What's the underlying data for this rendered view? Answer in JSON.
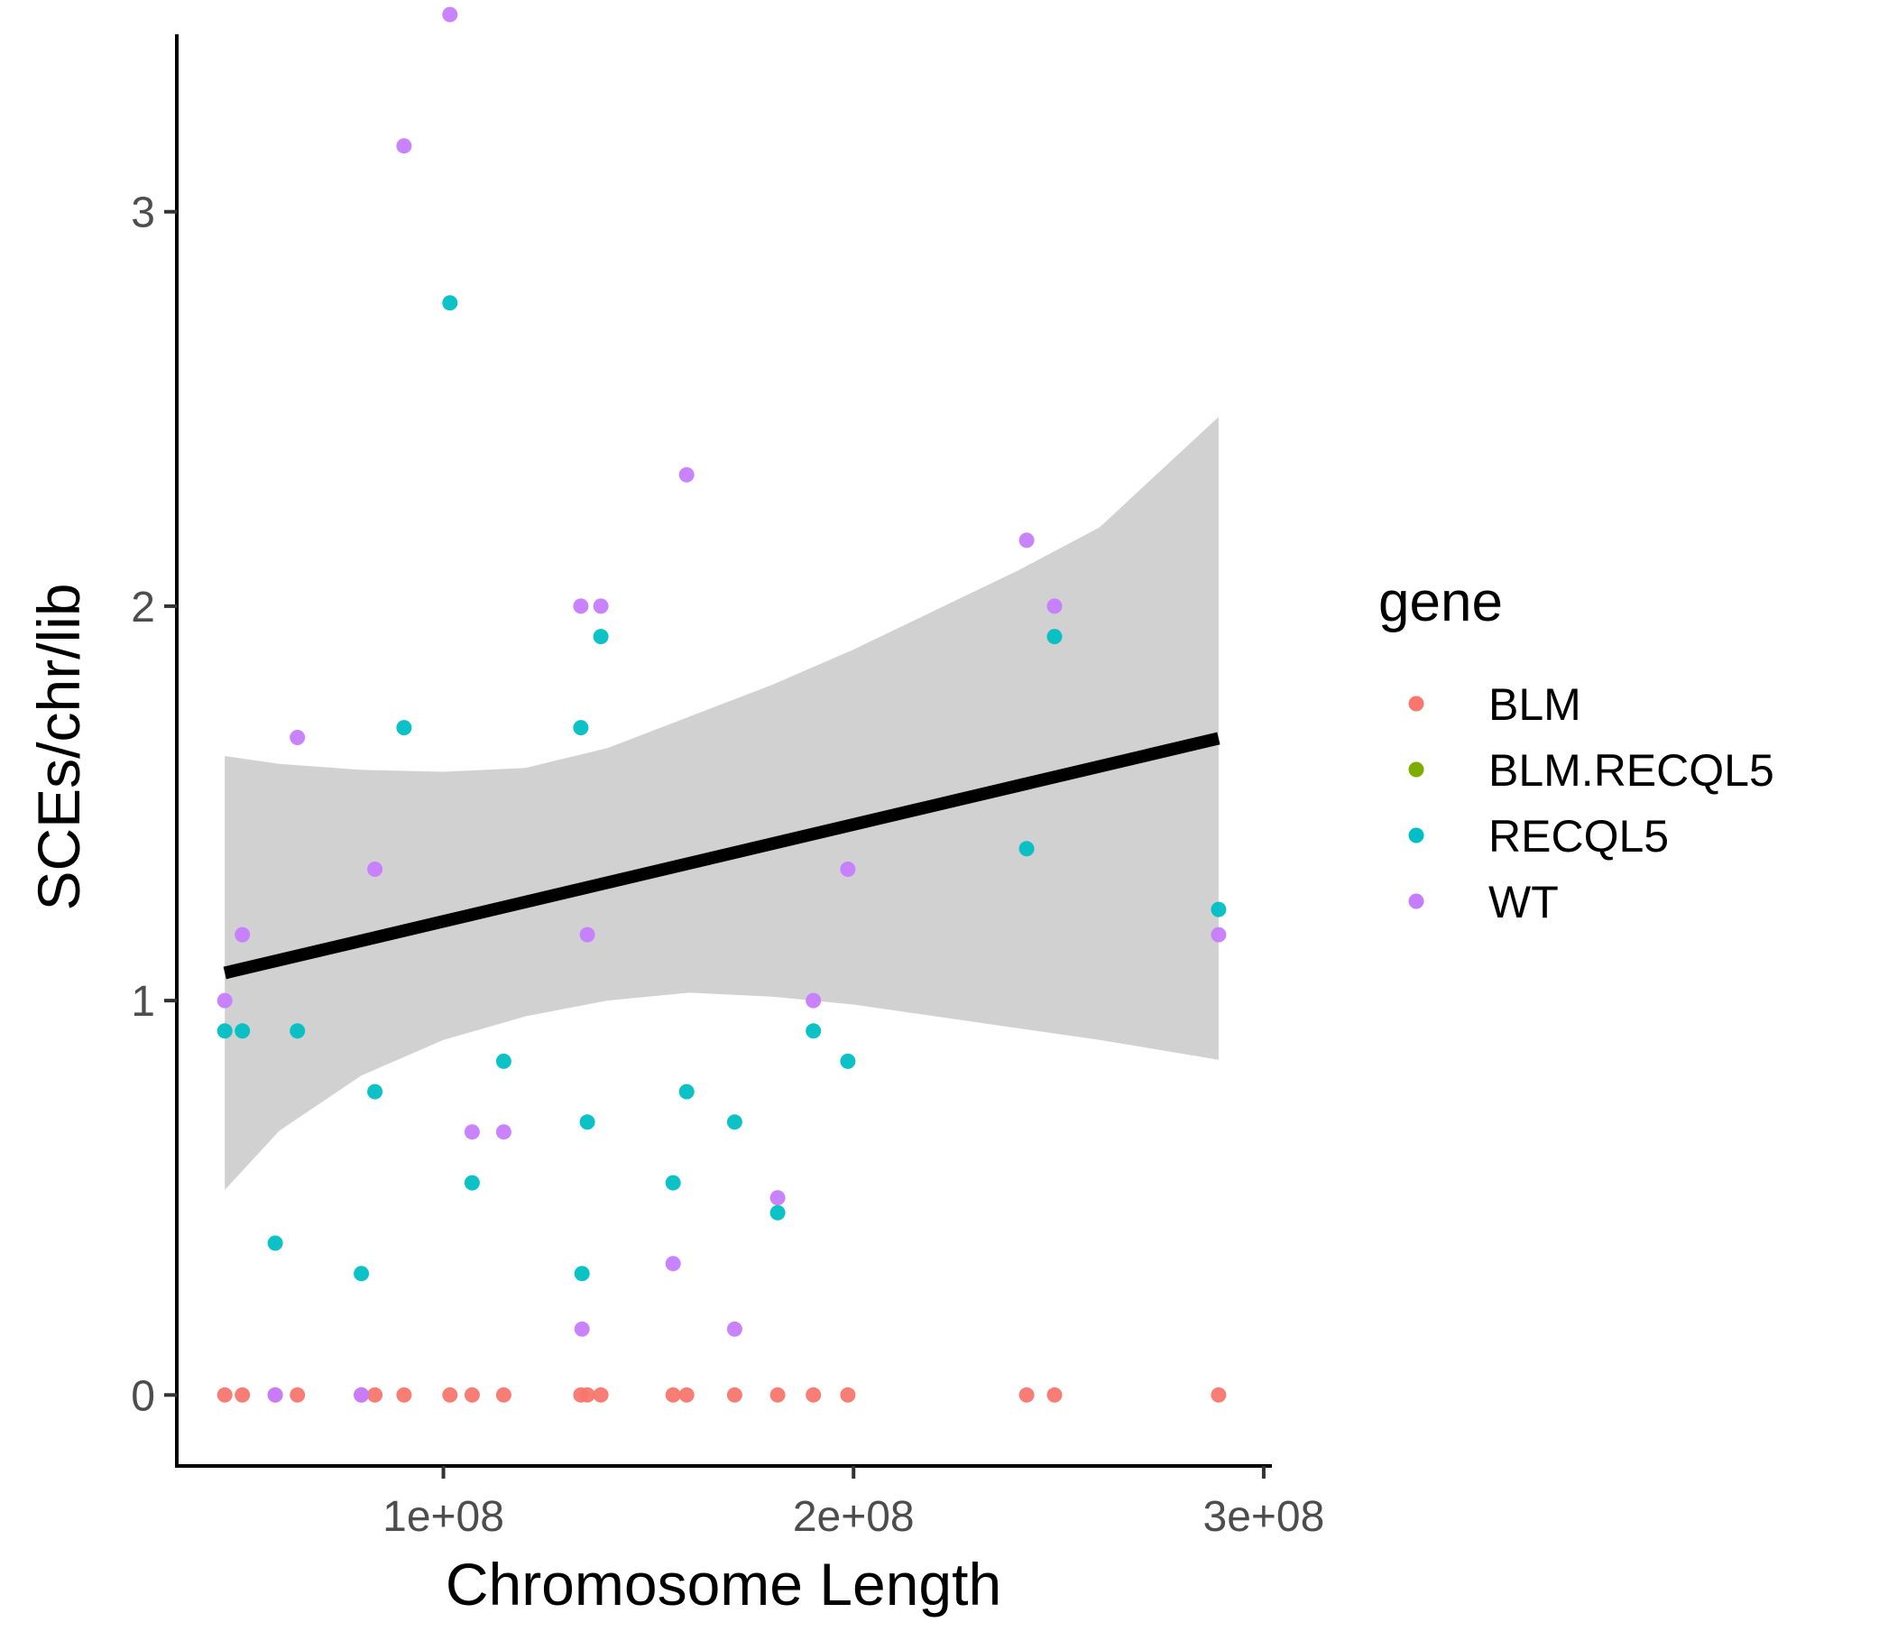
{
  "chart_data": {
    "type": "scatter",
    "xlabel": "Chromosome Length",
    "ylabel": "SCEs/chr/lib",
    "xlim": [
      35000000,
      302000000
    ],
    "ylim": [
      -0.18,
      3.45
    ],
    "xticks": [
      100000000,
      200000000,
      300000000
    ],
    "xtick_labels": [
      "1e+08",
      "2e+08",
      "3e+08"
    ],
    "yticks": [
      0,
      1,
      2,
      3
    ],
    "ytick_labels": [
      "0",
      "1",
      "2",
      "3"
    ],
    "grid": false,
    "legend": {
      "title": "gene",
      "position": "right",
      "items": [
        {
          "label": "BLM",
          "color": "#F8766D"
        },
        {
          "label": "BLM.RECQL5",
          "color": "#7CAE00"
        },
        {
          "label": "RECQL5",
          "color": "#00BFC4"
        },
        {
          "label": "WT",
          "color": "#C77CFF"
        }
      ]
    },
    "series": [
      {
        "name": "BLM",
        "color": "#F8766D",
        "x": [
          46700000,
          51000000,
          59000000,
          64400000,
          80000000,
          83300000,
          90400000,
          101600000,
          107000000,
          114700000,
          133500000,
          135100000,
          138400000,
          156000000,
          159300000,
          171000000,
          181500000,
          190200000,
          198600000,
          242200000,
          249000000,
          289000000
        ],
        "y": [
          0,
          0,
          0,
          0,
          0,
          0,
          0,
          0,
          0,
          0,
          0,
          0,
          0,
          0,
          0,
          0,
          0,
          0,
          0,
          0,
          0,
          0
        ]
      },
      {
        "name": "RECQL5",
        "color": "#00BFC4",
        "x": [
          46700000,
          51000000,
          59000000,
          64400000,
          80000000,
          83300000,
          90400000,
          101600000,
          107000000,
          114700000,
          133500000,
          133800000,
          135100000,
          138400000,
          156000000,
          159300000,
          171000000,
          181500000,
          190200000,
          198600000,
          242200000,
          249000000,
          289000000
        ],
        "y": [
          0.923,
          0.923,
          0.385,
          0.923,
          0.308,
          0.769,
          1.692,
          2.769,
          0.538,
          0.846,
          1.692,
          0.308,
          0.692,
          1.923,
          0.538,
          0.769,
          0.692,
          0.462,
          0.923,
          0.846,
          1.385,
          1.923,
          1.231
        ]
      },
      {
        "name": "WT",
        "color": "#C77CFF",
        "x": [
          46700000,
          51000000,
          59000000,
          64400000,
          80000000,
          83300000,
          90400000,
          101600000,
          107000000,
          114700000,
          133500000,
          133800000,
          135100000,
          138400000,
          156000000,
          159300000,
          171000000,
          181500000,
          190200000,
          198600000,
          242200000,
          249000000,
          289000000
        ],
        "y": [
          1.0,
          1.167,
          0,
          1.667,
          0,
          1.333,
          3.167,
          3.5,
          0.667,
          0.667,
          2.0,
          0.167,
          1.167,
          2.0,
          0.333,
          2.333,
          0.167,
          0.5,
          1.0,
          1.333,
          2.167,
          2.0,
          1.167
        ]
      }
    ],
    "trend_line": {
      "type": "linear",
      "x": [
        46700000,
        289000000
      ],
      "y": [
        1.07,
        1.665
      ]
    },
    "confidence_band": {
      "x": [
        46700000,
        60000000,
        80000000,
        100000000,
        120000000,
        140000000,
        160000000,
        180000000,
        200000000,
        220000000,
        240000000,
        260000000,
        289000000
      ],
      "lower": [
        0.52,
        0.67,
        0.81,
        0.9,
        0.96,
        1.0,
        1.02,
        1.01,
        0.99,
        0.96,
        0.93,
        0.9,
        0.85
      ],
      "upper": [
        1.62,
        1.6,
        1.585,
        1.58,
        1.59,
        1.64,
        1.72,
        1.8,
        1.89,
        1.99,
        2.09,
        2.2,
        2.48
      ]
    }
  }
}
